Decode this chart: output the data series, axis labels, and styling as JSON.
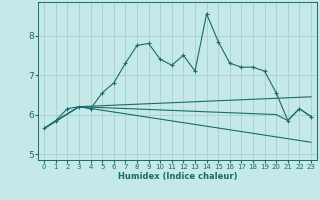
{
  "xlabel": "Humidex (Indice chaleur)",
  "bg_color": "#c5e8e8",
  "grid_color": "#a8cece",
  "line_color": "#1a6b6b",
  "line1_x": [
    0,
    1,
    2,
    3,
    4,
    5,
    6,
    7,
    8,
    9,
    10,
    11,
    12,
    13,
    14,
    15,
    16,
    17,
    18,
    19,
    20,
    21,
    22,
    23
  ],
  "line1_y": [
    5.65,
    5.85,
    6.15,
    6.2,
    6.15,
    6.55,
    6.8,
    7.3,
    7.75,
    7.8,
    7.4,
    7.25,
    7.5,
    7.1,
    8.55,
    7.85,
    7.3,
    7.2,
    7.2,
    7.1,
    6.55,
    5.85,
    6.15,
    5.95
  ],
  "line2_x": [
    0,
    3,
    23
  ],
  "line2_y": [
    5.65,
    6.2,
    6.45
  ],
  "line3_x": [
    0,
    3,
    20,
    21,
    22,
    23
  ],
  "line3_y": [
    5.65,
    6.2,
    6.0,
    5.85,
    6.15,
    5.95
  ],
  "line4_x": [
    0,
    3,
    23
  ],
  "line4_y": [
    5.65,
    6.2,
    5.3
  ],
  "xlim": [
    -0.5,
    23.5
  ],
  "ylim": [
    4.85,
    8.85
  ],
  "xticks": [
    0,
    1,
    2,
    3,
    4,
    5,
    6,
    7,
    8,
    9,
    10,
    11,
    12,
    13,
    14,
    15,
    16,
    17,
    18,
    19,
    20,
    21,
    22,
    23
  ],
  "yticks": [
    5,
    6,
    7,
    8
  ],
  "xlabel_fontsize": 6.0,
  "tick_fontsize_x": 5.0,
  "tick_fontsize_y": 6.5
}
